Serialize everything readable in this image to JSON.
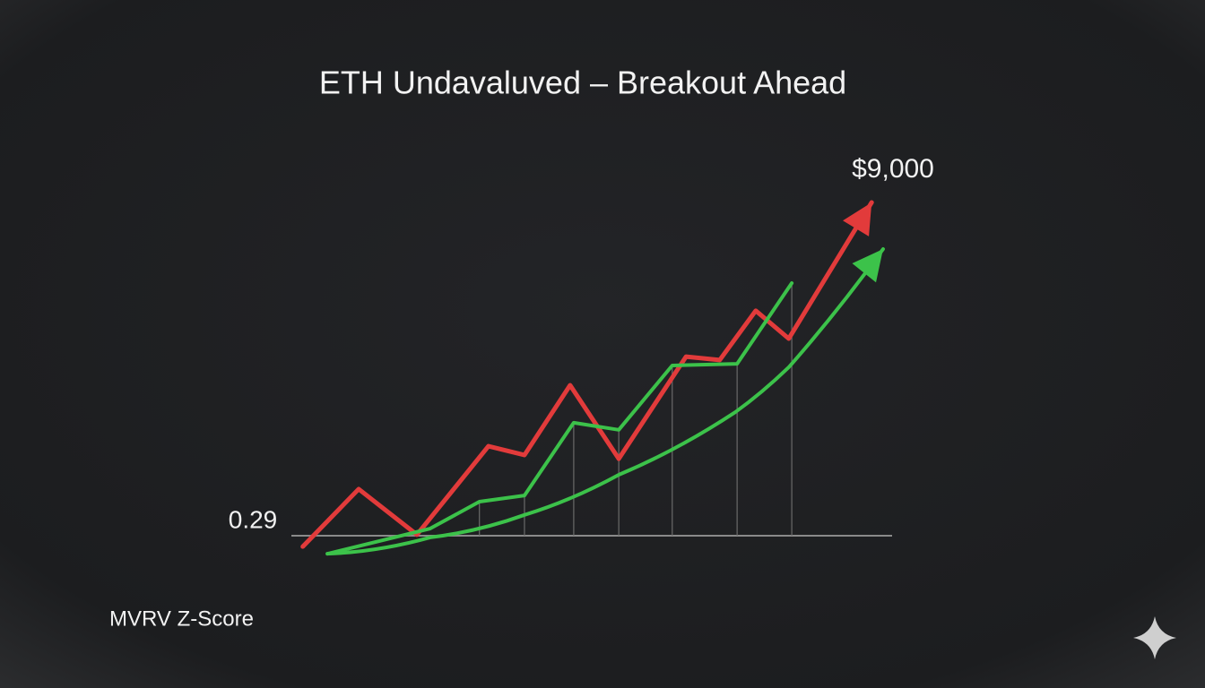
{
  "chart_data": {
    "type": "line",
    "title": "ETH Undavaluved – Breakout Ahead",
    "annotations": [
      "$9,000",
      "0.29",
      "MVRV Z-Score"
    ],
    "xlim": [
      0,
      100
    ],
    "ylim": [
      0,
      100
    ],
    "series": [
      {
        "color": "#e23b3b",
        "x": [
          1.9,
          11.2,
          20.9,
          32.8,
          38.8,
          46.4,
          54.5,
          65.7,
          71.3,
          77.3,
          82.8,
          96.6
        ],
        "values": [
          -3.2,
          13.7,
          0.3,
          26.3,
          23.7,
          44.2,
          22.6,
          52.6,
          51.6,
          66.1,
          57.9,
          97.9
        ]
      },
      {
        "color": "#3cc24a",
        "x": [
          6,
          23.1,
          31.3,
          38.8,
          47,
          54.5,
          63.4,
          74.2,
          83.3
        ],
        "values": [
          -5.3,
          2.1,
          10,
          11.8,
          33.2,
          31.1,
          50,
          50.5,
          74.2
        ]
      },
      {
        "color": "#3cc24a",
        "x": [
          6,
          23.1,
          38.8,
          54.5,
          73.9,
          82.8,
          98.5
        ],
        "values": [
          -5.3,
          -0.5,
          6.1,
          17.9,
          36.3,
          49.5,
          84.2
        ]
      }
    ]
  }
}
